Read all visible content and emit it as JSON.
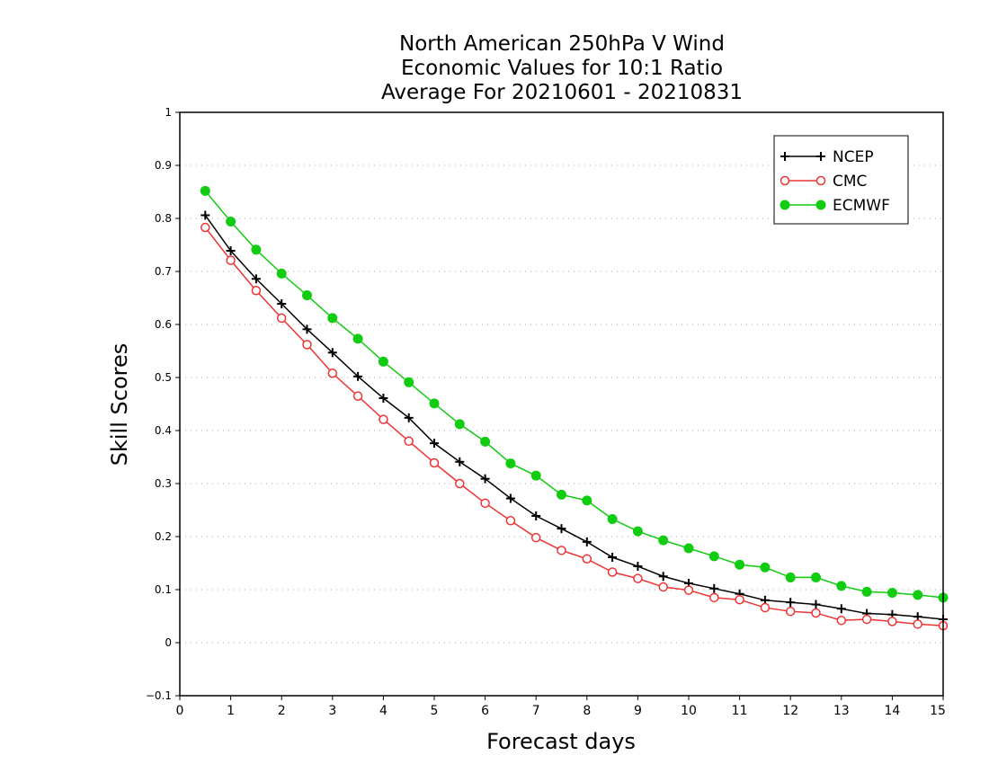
{
  "chart_data": {
    "type": "line",
    "title": [
      "North American 250hPa V Wind",
      "Economic Values for 10:1 Ratio",
      "Average For 20210601 - 20210831"
    ],
    "xlabel": "Forecast days",
    "ylabel": "Skill Scores",
    "xlim": [
      0,
      15
    ],
    "ylim": [
      -0.1,
      1
    ],
    "xticks": [
      "0",
      "1",
      "2",
      "3",
      "4",
      "5",
      "6",
      "7",
      "8",
      "9",
      "10",
      "11",
      "12",
      "13",
      "14",
      "15"
    ],
    "yticks": [
      "−0.1",
      "0",
      "0.1",
      "0.2",
      "0.3",
      "0.4",
      "0.5",
      "0.6",
      "0.7",
      "0.8",
      "0.9",
      "1"
    ],
    "grid": true,
    "legend_position": "top-right",
    "x": [
      0.5,
      1,
      1.5,
      2,
      2.5,
      3,
      3.5,
      4,
      4.5,
      5,
      5.5,
      6,
      6.5,
      7,
      7.5,
      8,
      8.5,
      9,
      9.5,
      10,
      10.5,
      11,
      11.5,
      12,
      12.5,
      13,
      13.5,
      14,
      14.5,
      15
    ],
    "series": [
      {
        "name": "NCEP",
        "color": "#000000",
        "marker": "plus",
        "values": [
          0.806,
          0.739,
          0.686,
          0.639,
          0.591,
          0.547,
          0.502,
          0.461,
          0.424,
          0.376,
          0.341,
          0.309,
          0.272,
          0.239,
          0.215,
          0.19,
          0.161,
          0.144,
          0.125,
          0.112,
          0.102,
          0.092,
          0.08,
          0.076,
          0.072,
          0.064,
          0.055,
          0.053,
          0.049,
          0.044
        ]
      },
      {
        "name": "CMC",
        "color": "#ee3333",
        "marker": "open-circle",
        "values": [
          0.783,
          0.721,
          0.664,
          0.612,
          0.562,
          0.508,
          0.465,
          0.421,
          0.38,
          0.339,
          0.3,
          0.263,
          0.23,
          0.198,
          0.174,
          0.158,
          0.133,
          0.121,
          0.105,
          0.099,
          0.085,
          0.081,
          0.066,
          0.059,
          0.056,
          0.042,
          0.044,
          0.04,
          0.035,
          0.032
        ]
      },
      {
        "name": "ECMWF",
        "color": "#11cc11",
        "marker": "filled-circle",
        "values": [
          0.852,
          0.794,
          0.741,
          0.696,
          0.655,
          0.612,
          0.573,
          0.53,
          0.491,
          0.451,
          0.412,
          0.379,
          0.338,
          0.315,
          0.279,
          0.268,
          0.233,
          0.21,
          0.193,
          0.178,
          0.163,
          0.147,
          0.142,
          0.123,
          0.123,
          0.107,
          0.096,
          0.094,
          0.09,
          0.085
        ]
      }
    ]
  }
}
